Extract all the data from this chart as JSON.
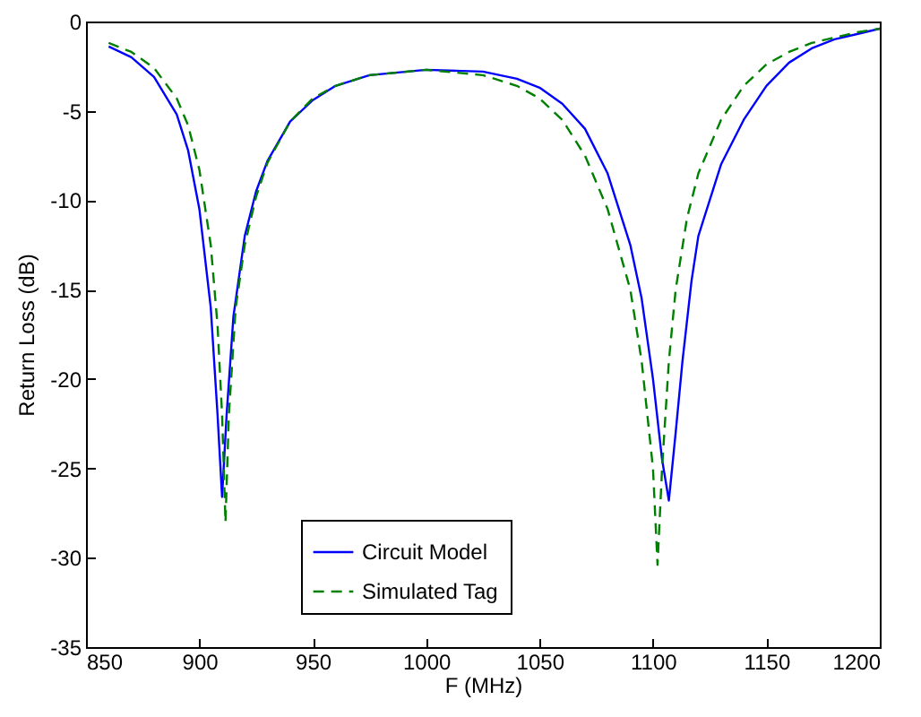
{
  "chart_data": {
    "type": "line",
    "xlabel": "F (MHz)",
    "ylabel": "Return Loss (dB)",
    "xlim": [
      850,
      1200
    ],
    "ylim": [
      -35,
      0
    ],
    "xticks": [
      850,
      900,
      950,
      1000,
      1050,
      1100,
      1150,
      1200
    ],
    "yticks": [
      -35,
      -30,
      -25,
      -20,
      -15,
      -10,
      -5,
      0
    ],
    "grid": false,
    "legend": "bottom",
    "marker": "none",
    "series": [
      {
        "name": "Circuit Model",
        "color": "#0000ff",
        "line_style": "solid",
        "x": [
          860,
          870,
          880,
          890,
          895,
          900,
          905,
          908,
          910,
          912,
          915,
          920,
          925,
          930,
          940,
          950,
          960,
          975,
          1000,
          1025,
          1040,
          1050,
          1060,
          1070,
          1080,
          1090,
          1095,
          1100,
          1104,
          1107,
          1110,
          1113,
          1117,
          1120,
          1130,
          1140,
          1150,
          1160,
          1170,
          1180,
          1190,
          1200
        ],
        "values": [
          -1.4,
          -2.0,
          -3.1,
          -5.2,
          -7.2,
          -10.5,
          -16,
          -22,
          -26.6,
          -22,
          -16.5,
          -12,
          -9.5,
          -7.8,
          -5.6,
          -4.4,
          -3.6,
          -3.0,
          -2.7,
          -2.8,
          -3.2,
          -3.7,
          -4.6,
          -6.0,
          -8.5,
          -12.5,
          -15.5,
          -20,
          -24.5,
          -26.8,
          -23,
          -19,
          -14.5,
          -12,
          -8,
          -5.5,
          -3.6,
          -2.3,
          -1.5,
          -1.0,
          -0.7,
          -0.4
        ]
      },
      {
        "name": "Simulated Tag",
        "color": "#008000",
        "line_style": "dashed",
        "x": [
          860,
          870,
          880,
          890,
          895,
          900,
          905,
          908,
          910,
          911.5,
          913,
          916,
          920,
          925,
          930,
          940,
          950,
          960,
          975,
          1000,
          1025,
          1040,
          1050,
          1060,
          1070,
          1080,
          1090,
          1095,
          1100,
          1102,
          1104,
          1107,
          1110,
          1115,
          1120,
          1130,
          1140,
          1150,
          1160,
          1170,
          1180,
          1190,
          1200
        ],
        "values": [
          -1.2,
          -1.7,
          -2.6,
          -4.3,
          -5.8,
          -8.3,
          -12.5,
          -17,
          -22,
          -28,
          -22,
          -16,
          -12.5,
          -9.8,
          -7.9,
          -5.6,
          -4.3,
          -3.6,
          -3.0,
          -2.7,
          -3.0,
          -3.6,
          -4.3,
          -5.5,
          -7.5,
          -10.5,
          -15,
          -19,
          -25,
          -30.4,
          -25,
          -19,
          -15,
          -11,
          -8.5,
          -5.5,
          -3.6,
          -2.4,
          -1.7,
          -1.2,
          -0.9,
          -0.6,
          -0.4
        ]
      }
    ]
  }
}
